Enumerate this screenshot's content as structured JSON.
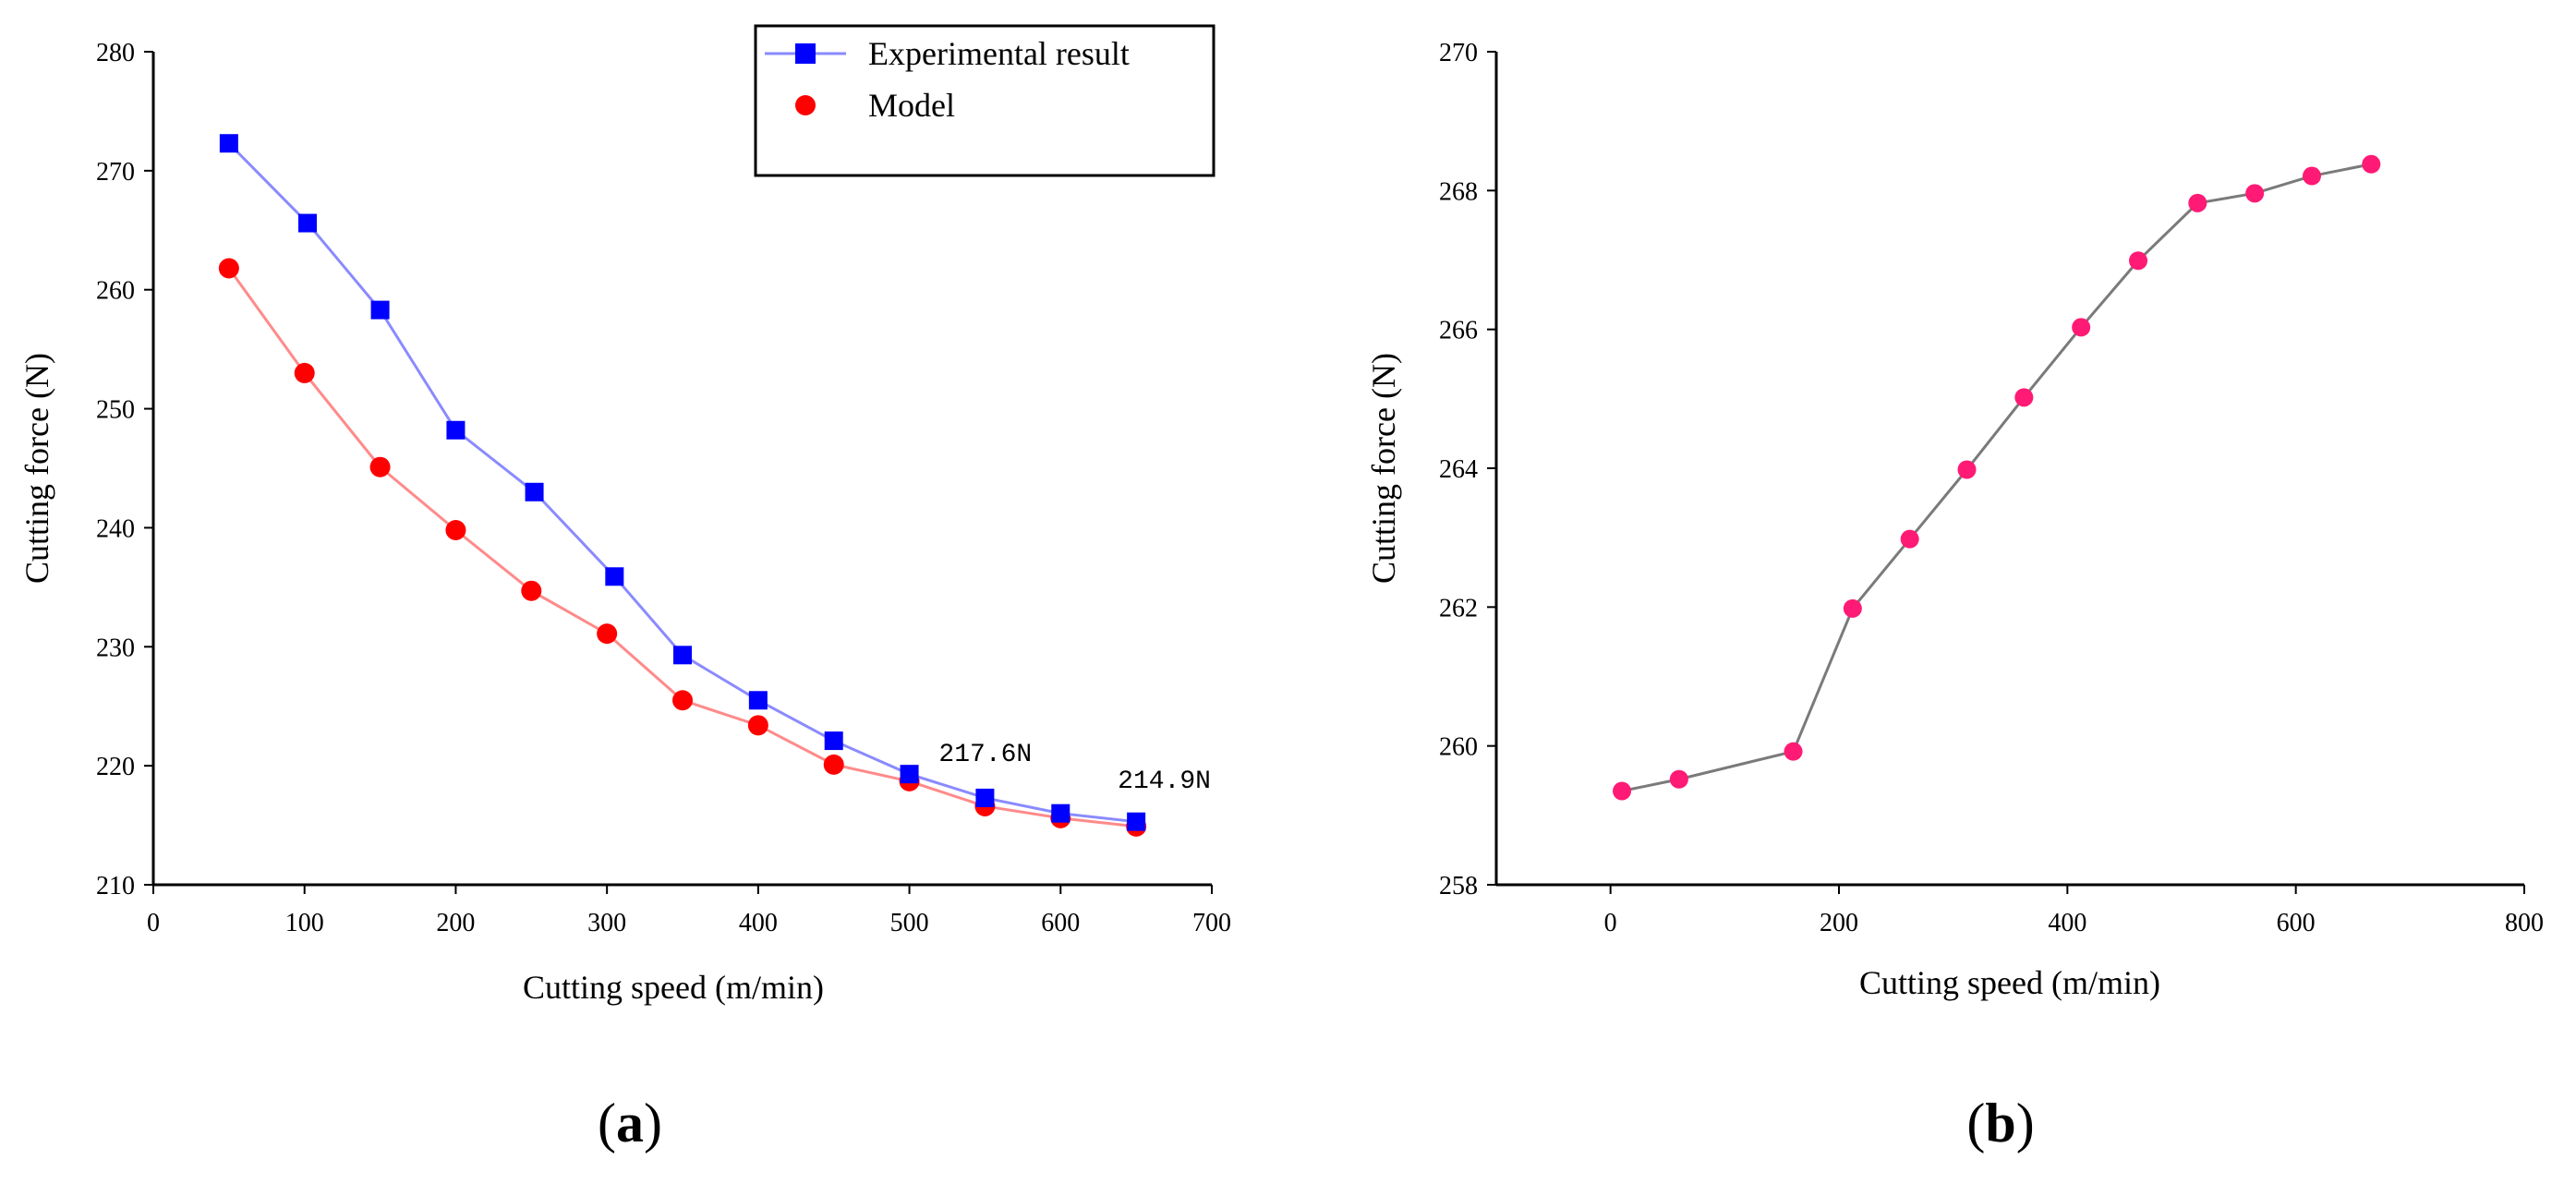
{
  "colors": {
    "experimental": "#0000ff",
    "experimental_line": "#8a8aff",
    "model": "#ff0000",
    "model_line": "#ff8a8a",
    "b_marker": "#ff1a75",
    "b_line": "#7a7a7a",
    "axis": "#000000"
  },
  "panels": {
    "a": {
      "label_open": "(",
      "label_letter": "a",
      "label_close": ")"
    },
    "b": {
      "label_open": "(",
      "label_letter": "b",
      "label_close": ")"
    }
  },
  "chart_data": [
    {
      "id": "a",
      "type": "line",
      "title": "",
      "xlabel": "Cutting speed (m/min)",
      "ylabel": "Cutting force (N)",
      "xlim": [
        0,
        700
      ],
      "ylim": [
        210,
        280
      ],
      "xticks": [
        0,
        100,
        200,
        300,
        400,
        500,
        600,
        700
      ],
      "yticks": [
        210,
        220,
        230,
        240,
        250,
        260,
        270,
        280
      ],
      "legend": {
        "position": "top-right",
        "boxed": true
      },
      "series": [
        {
          "name": "Experimental result",
          "marker": "square",
          "x": [
            50,
            102,
            150,
            200,
            252,
            305,
            350,
            400,
            450,
            500,
            550,
            600,
            650
          ],
          "y": [
            272.3,
            265.6,
            258.3,
            248.2,
            243.0,
            235.9,
            229.3,
            225.5,
            222.1,
            219.3,
            217.3,
            216.0,
            215.3
          ]
        },
        {
          "name": "Model",
          "marker": "circle",
          "x": [
            50,
            100,
            150,
            200,
            250,
            300,
            350,
            400,
            450,
            500,
            550,
            600,
            650
          ],
          "y": [
            261.8,
            253.0,
            245.1,
            239.8,
            234.7,
            231.1,
            225.5,
            223.4,
            220.1,
            218.7,
            216.6,
            215.6,
            214.9
          ]
        }
      ],
      "annotations": [
        {
          "text": "217.6N",
          "x": 550,
          "y": 217.6
        },
        {
          "text": "214.9N",
          "x": 650,
          "y": 214.9
        }
      ]
    },
    {
      "id": "b",
      "type": "line",
      "title": "",
      "xlabel": "Cutting speed (m/min)",
      "ylabel": "Cutting force (N)",
      "xlim": [
        -100,
        800
      ],
      "ylim": [
        258,
        270
      ],
      "xticks": [
        0,
        200,
        400,
        600,
        800
      ],
      "yticks": [
        258,
        260,
        262,
        264,
        266,
        268,
        270
      ],
      "series": [
        {
          "name": "Cutting force",
          "marker": "circle",
          "x": [
            10,
            60,
            160,
            212,
            262,
            312,
            362,
            412,
            462,
            514,
            564,
            614,
            666
          ],
          "y": [
            259.35,
            259.52,
            259.92,
            261.98,
            262.98,
            263.98,
            265.02,
            266.03,
            266.99,
            267.82,
            267.96,
            268.21,
            268.38
          ]
        }
      ]
    }
  ]
}
